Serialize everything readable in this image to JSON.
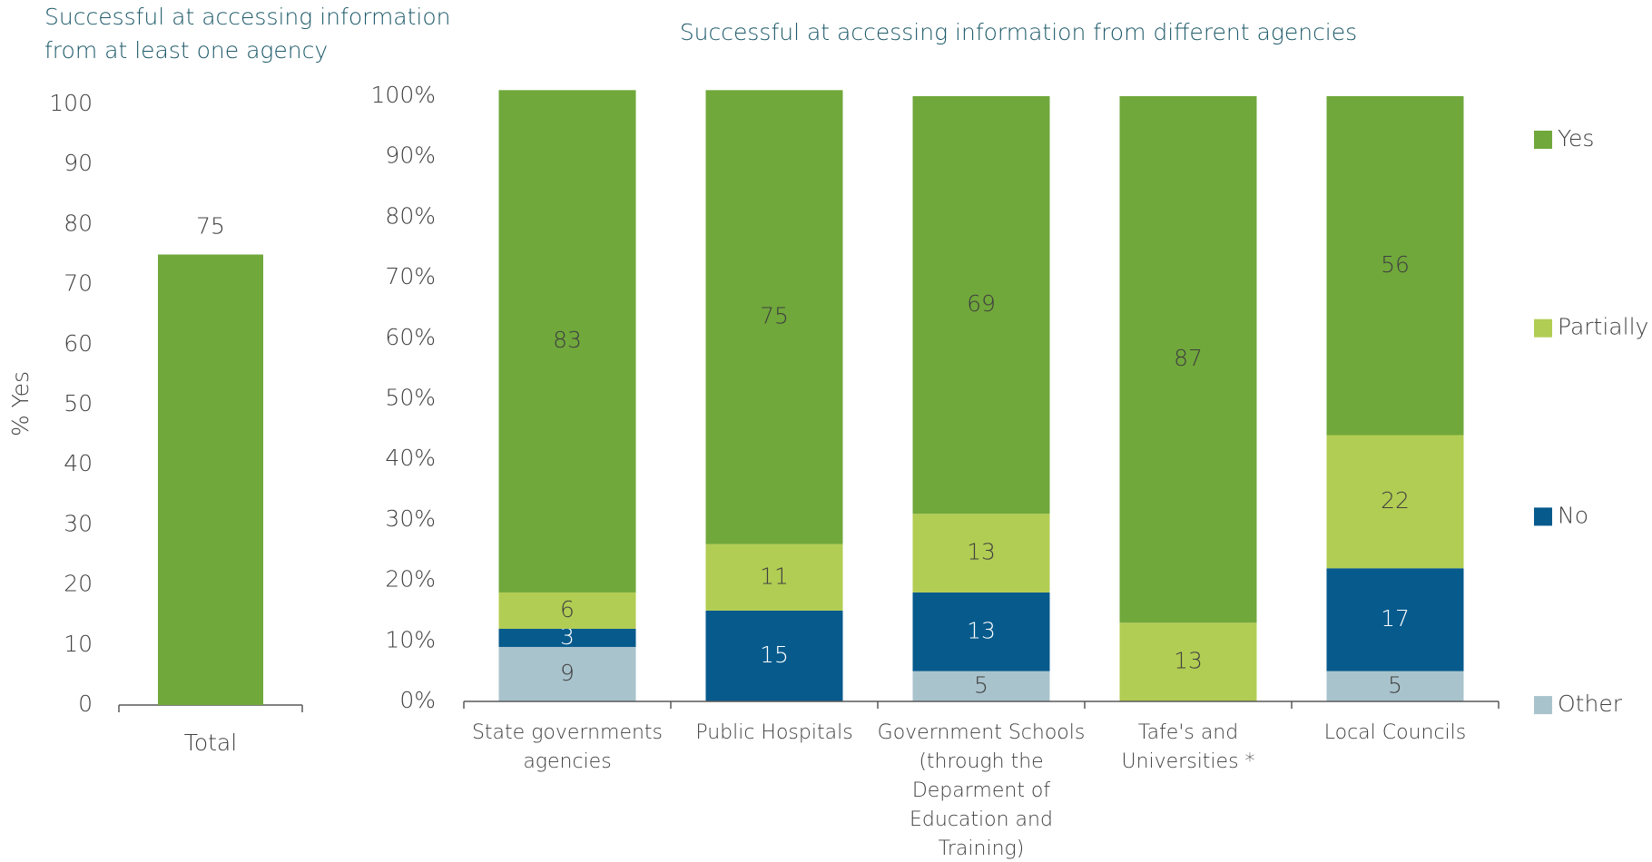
{
  "chart_data": [
    {
      "type": "bar",
      "title": "Successful at accessing information from at least one agency",
      "ylabel": "% Yes",
      "categories": [
        "Total"
      ],
      "values": [
        75
      ],
      "color": "#70a83b",
      "ylim": [
        0,
        100
      ],
      "yticks": [
        0,
        10,
        20,
        30,
        40,
        50,
        60,
        70,
        80,
        90,
        100
      ],
      "grid": false
    },
    {
      "type": "stacked_bar",
      "title": "Successful at accessing information from different agencies",
      "categories": [
        "State governments agencies",
        "Public Hospitals",
        "Government Schools (through the Deparment of Education and Training)",
        "Tafe's and Universities *",
        "Local Councils"
      ],
      "series": [
        {
          "name": "Other",
          "color": "#a9c3cc",
          "values": [
            9,
            null,
            5,
            null,
            5
          ]
        },
        {
          "name": "No",
          "color": "#065a8c",
          "values": [
            3,
            15,
            13,
            null,
            17
          ]
        },
        {
          "name": "Partially",
          "color": "#b2cd53",
          "values": [
            6,
            11,
            13,
            13,
            22
          ]
        },
        {
          "name": "Yes",
          "color": "#70a83b",
          "values": [
            83,
            75,
            69,
            87,
            56
          ]
        }
      ],
      "ylim": [
        0,
        100
      ],
      "yticks": [
        {
          "value": 0,
          "label": "0%"
        },
        {
          "value": 10,
          "label": "10%"
        },
        {
          "value": 20,
          "label": "20%"
        },
        {
          "value": 30,
          "label": "30%"
        },
        {
          "value": 40,
          "label": "40%"
        },
        {
          "value": 50,
          "label": "50%"
        },
        {
          "value": 60,
          "label": "60%"
        },
        {
          "value": 70,
          "label": "70%"
        },
        {
          "value": 80,
          "label": "80%"
        },
        {
          "value": 90,
          "label": "90%"
        },
        {
          "value": 100,
          "label": "100%"
        }
      ],
      "grid": false,
      "legend": "right"
    }
  ]
}
